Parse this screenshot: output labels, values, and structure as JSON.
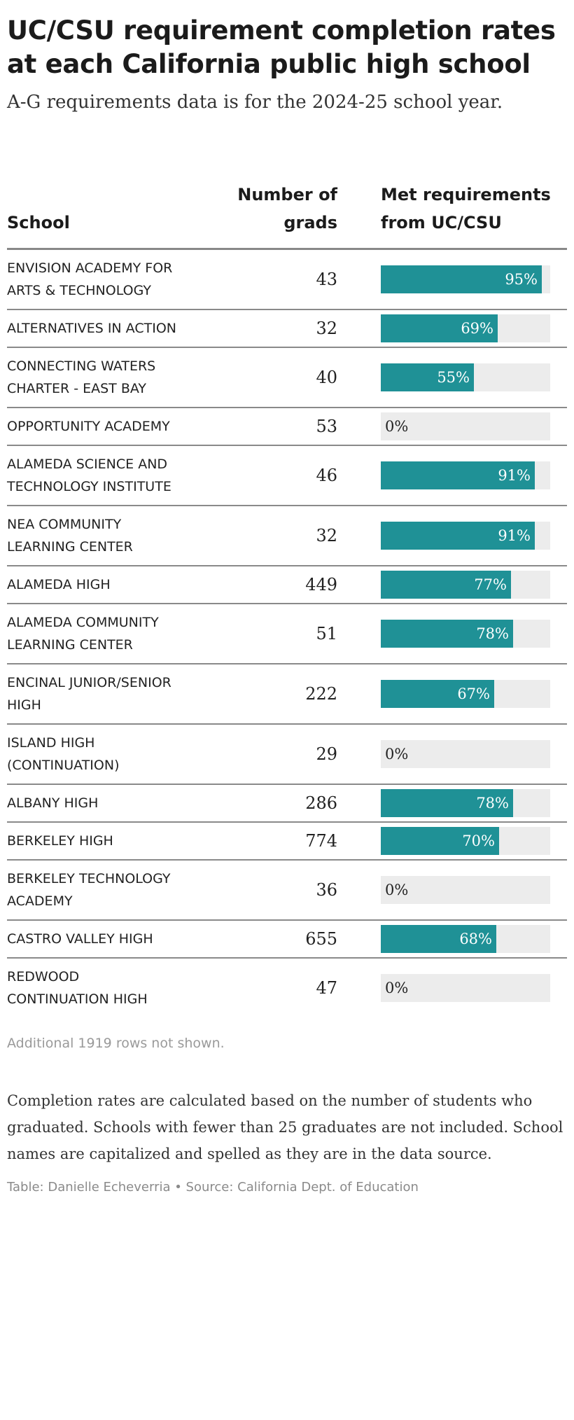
{
  "title": "UC/CSU requirement completion rates at each California public high school",
  "subtitle": "A-G requirements data is for the 2024-25 school year.",
  "columns": {
    "school": "School",
    "grads": "Number of grads",
    "met": "Met requirements from UC/CSU"
  },
  "chart_data": {
    "type": "table",
    "bar_color": "#1f9196",
    "track_color": "#ececec",
    "rows": [
      {
        "school": "ENVISION ACADEMY FOR ARTS & TECHNOLOGY",
        "grads": "43",
        "pct": 95,
        "label": "95%"
      },
      {
        "school": "ALTERNATIVES IN ACTION",
        "grads": "32",
        "pct": 69,
        "label": "69%"
      },
      {
        "school": "CONNECTING WATERS CHARTER - EAST BAY",
        "grads": "40",
        "pct": 55,
        "label": "55%"
      },
      {
        "school": "OPPORTUNITY ACADEMY",
        "grads": "53",
        "pct": 0,
        "label": "0%"
      },
      {
        "school": "ALAMEDA SCIENCE AND TECHNOLOGY INSTITUTE",
        "grads": "46",
        "pct": 91,
        "label": "91%"
      },
      {
        "school": "NEA COMMUNITY LEARNING CENTER",
        "grads": "32",
        "pct": 91,
        "label": "91%"
      },
      {
        "school": "ALAMEDA HIGH",
        "grads": "449",
        "pct": 77,
        "label": "77%"
      },
      {
        "school": "ALAMEDA COMMUNITY LEARNING CENTER",
        "grads": "51",
        "pct": 78,
        "label": "78%"
      },
      {
        "school": "ENCINAL JUNIOR/SENIOR HIGH",
        "grads": "222",
        "pct": 67,
        "label": "67%"
      },
      {
        "school": "ISLAND HIGH (CONTINUATION)",
        "grads": "29",
        "pct": 0,
        "label": "0%"
      },
      {
        "school": "ALBANY HIGH",
        "grads": "286",
        "pct": 78,
        "label": "78%"
      },
      {
        "school": "BERKELEY HIGH",
        "grads": "774",
        "pct": 70,
        "label": "70%"
      },
      {
        "school": "BERKELEY TECHNOLOGY ACADEMY",
        "grads": "36",
        "pct": 0,
        "label": "0%"
      },
      {
        "school": "CASTRO VALLEY HIGH",
        "grads": "655",
        "pct": 68,
        "label": "68%"
      },
      {
        "school": "REDWOOD CONTINUATION HIGH",
        "grads": "47",
        "pct": 0,
        "label": "0%"
      }
    ]
  },
  "rows_note": "Additional 1919 rows not shown.",
  "footnote": "Completion rates are calculated based on the number of students who graduated. Schools with fewer than 25 graduates are not included. School names are capitalized and spelled as they are in the data source.",
  "credit": "Table: Danielle Echeverria • Source: California Dept. of Education"
}
